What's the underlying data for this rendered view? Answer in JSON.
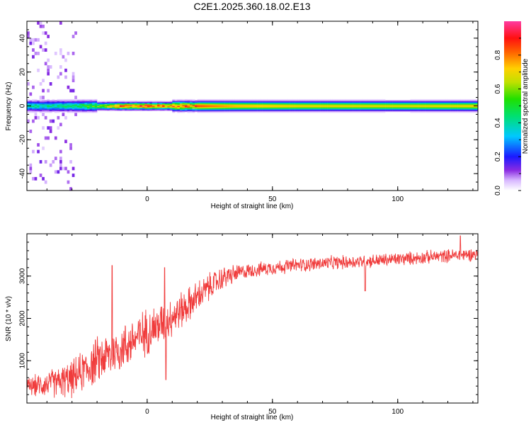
{
  "title": "C2E1.2025.360.18.02.E13",
  "colors": {
    "line": "#f03c3c",
    "frame": "#000000"
  },
  "chart_data": [
    {
      "type": "heatmap",
      "xlabel": "Height of straight line (km)",
      "ylabel": "Frequency (Hz)",
      "xlim": [
        -48,
        132
      ],
      "ylim": [
        -50,
        50
      ],
      "xticks": [
        0,
        50,
        100
      ],
      "xtick_labels": [
        "0",
        "50",
        "100"
      ],
      "yticks": [
        -40,
        -20,
        0,
        20,
        40
      ],
      "ytick_labels": [
        "-40",
        "-20",
        "0",
        "20",
        "40"
      ],
      "colorbar": {
        "label": "Normalized spectral amplitude",
        "ticks": [
          0.0,
          0.2,
          0.4,
          0.6,
          0.8
        ],
        "tick_labels": [
          "0.0",
          "0.2",
          "0.4",
          "0.6",
          "0.8"
        ],
        "range": [
          0,
          1
        ]
      },
      "band": {
        "center_hz": 0,
        "half_width_hz": [
          4,
          3,
          3,
          2,
          2,
          3,
          3
        ],
        "amplitude_profile_x": [
          -48,
          -35,
          -20,
          -12,
          0,
          7,
          12,
          20,
          35,
          60,
          100,
          132
        ],
        "amplitude_profile_v": [
          0.45,
          0.45,
          0.6,
          0.9,
          0.95,
          0.85,
          0.9,
          0.85,
          0.75,
          0.7,
          0.68,
          0.7
        ]
      }
    },
    {
      "type": "line",
      "xlabel": "Height of straight line (km)",
      "ylabel": "SNR (10 * v/v)",
      "xlim": [
        -48,
        132
      ],
      "ylim": [
        0,
        4000
      ],
      "xticks": [
        0,
        50,
        100
      ],
      "xtick_labels": [
        "0",
        "50",
        "100"
      ],
      "yticks": [
        1000,
        2000,
        3000
      ],
      "ytick_labels": [
        "1000",
        "2000",
        "3000"
      ],
      "trend_x": [
        -48,
        -40,
        -35,
        -30,
        -25,
        -20,
        -15,
        -10,
        -5,
        0,
        5,
        10,
        15,
        20,
        25,
        30,
        35,
        40,
        50,
        60,
        70,
        80,
        90,
        100,
        110,
        120,
        132
      ],
      "trend_y": [
        380,
        450,
        500,
        560,
        780,
        1000,
        1150,
        1300,
        1500,
        1700,
        1850,
        2050,
        2250,
        2500,
        2750,
        2950,
        3050,
        3120,
        3200,
        3260,
        3300,
        3330,
        3360,
        3400,
        3440,
        3480,
        3520
      ],
      "noise_x": [
        -48,
        -20,
        0,
        20,
        40,
        132
      ],
      "noise_amp": [
        250,
        650,
        650,
        450,
        200,
        180
      ],
      "spikes": [
        {
          "x": -14,
          "y": 3250
        },
        {
          "x": 7,
          "y": 3200
        },
        {
          "x": 7.5,
          "y": 550
        },
        {
          "x": 87,
          "y": 2650
        },
        {
          "x": 125,
          "y": 3950
        }
      ]
    }
  ]
}
